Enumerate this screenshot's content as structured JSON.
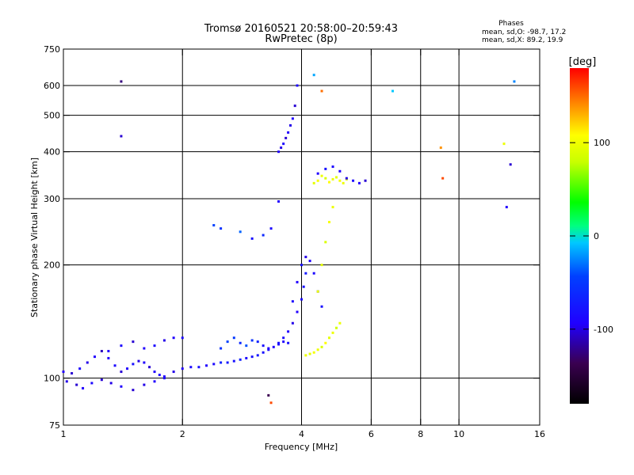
{
  "chart_data": {
    "type": "scatter",
    "title": "Tromsø 20160521 20:58:00–20:59:43",
    "subtitle": "RwPretec (8p)",
    "xlabel": "Frequency [MHz]",
    "ylabel": "Stationary phase Virtual Height [km]",
    "x_scale": "log",
    "y_scale": "log",
    "xlim": [
      1,
      16
    ],
    "ylim": [
      75,
      750
    ],
    "x_ticks": [
      1,
      2,
      4,
      6,
      8,
      10,
      16
    ],
    "y_ticks": [
      75,
      100,
      200,
      300,
      400,
      500,
      600,
      750
    ],
    "x_grid": [
      2,
      4,
      6,
      8,
      10
    ],
    "y_grid": [
      100,
      200,
      300,
      400,
      500,
      600
    ],
    "grid": true,
    "colorbar": {
      "label": "[deg]",
      "range": [
        -180,
        180
      ],
      "ticks": [
        100,
        0,
        -100
      ]
    },
    "stats": {
      "heading": "Phases",
      "line1": "mean, sd,O: -98.7, 17.2",
      "line2": "mean, sd,X:  89.2, 19.9"
    },
    "series": [
      {
        "x": [
          1.0,
          1.05,
          1.1,
          1.15,
          1.2,
          1.25,
          1.3,
          1.35,
          1.4,
          1.45,
          1.5,
          1.55,
          1.6,
          1.65,
          1.7,
          1.75,
          1.8,
          1.9,
          2.0,
          2.1,
          2.2,
          2.3,
          2.4,
          2.5,
          2.6,
          2.7,
          2.8,
          2.9,
          3.0,
          3.1,
          3.2,
          3.3,
          3.4,
          3.5,
          3.6,
          3.7,
          3.8,
          3.9,
          4.0,
          4.05,
          4.1
        ],
        "y": [
          104,
          103,
          106,
          110,
          114,
          118,
          113,
          108,
          104,
          106,
          109,
          111,
          110,
          107,
          104,
          102,
          101,
          104,
          106,
          107,
          107,
          108,
          109,
          110,
          110,
          111,
          112,
          113,
          114,
          115,
          117,
          119,
          121,
          124,
          128,
          133,
          140,
          150,
          162,
          175,
          190
        ],
        "phase": [
          -100,
          -110,
          -95,
          -105,
          -100,
          -115,
          -100,
          -95,
          -110,
          -100,
          -90,
          -105,
          -100,
          -110,
          -100,
          -95,
          -100,
          -105,
          -100,
          -95,
          -90,
          -100,
          -95,
          -80,
          -85,
          -90,
          -80,
          -95,
          -90,
          -85,
          -90,
          -95,
          -100,
          -90,
          -95,
          -100,
          -105,
          -100,
          -95,
          -90,
          -85
        ]
      },
      {
        "x": [
          1.02,
          1.08,
          1.12,
          1.18,
          1.25,
          1.32,
          1.4,
          1.5,
          1.6,
          1.7,
          1.8
        ],
        "y": [
          98,
          96,
          94,
          97,
          99,
          97,
          95,
          93,
          96,
          98,
          100
        ],
        "phase": [
          -105,
          -110,
          -100,
          -95,
          -110,
          -105,
          -100,
          -110,
          -105,
          -100,
          -95
        ]
      },
      {
        "x": [
          1.3,
          1.4,
          1.5,
          1.6,
          1.7,
          1.8,
          1.9,
          2.0
        ],
        "y": [
          118,
          122,
          125,
          120,
          122,
          126,
          128,
          128
        ],
        "phase": [
          -100,
          -95,
          -110,
          -100,
          -95,
          -105,
          -100,
          -95
        ]
      },
      {
        "x": [
          2.5,
          2.6,
          2.7,
          2.8,
          2.9,
          3.0,
          3.1,
          3.2,
          3.3,
          3.5,
          3.6,
          3.7
        ],
        "y": [
          120,
          125,
          128,
          124,
          122,
          126,
          125,
          122,
          120,
          123,
          125,
          124
        ],
        "phase": [
          -70,
          -60,
          -65,
          -75,
          -55,
          -70,
          -80,
          -90,
          -100,
          -95,
          -100,
          -90
        ]
      },
      {
        "x": [
          3.5,
          3.55,
          3.6,
          3.65,
          3.7,
          3.75,
          3.8,
          3.85,
          3.9
        ],
        "y": [
          400,
          410,
          420,
          435,
          450,
          470,
          490,
          530,
          600
        ],
        "phase": [
          -100,
          -105,
          -95,
          -110,
          -100,
          -105,
          -100,
          -110,
          -95
        ]
      },
      {
        "x": [
          4.3,
          4.4,
          4.5,
          4.6,
          4.7,
          4.8,
          4.9,
          5.0,
          5.1,
          5.2
        ],
        "y": [
          330,
          335,
          345,
          340,
          332,
          338,
          342,
          335,
          330,
          338
        ],
        "phase": [
          95,
          105,
          100,
          90,
          110,
          100,
          95,
          105,
          100,
          92
        ]
      },
      {
        "x": [
          4.4,
          4.6,
          4.8,
          5.0,
          5.2,
          5.4,
          5.6,
          5.8
        ],
        "y": [
          350,
          360,
          365,
          355,
          340,
          335,
          330,
          335
        ],
        "phase": [
          -100,
          -90,
          -95,
          -100,
          -105,
          -95,
          -100,
          -110
        ]
      },
      {
        "x": [
          4.1,
          4.2,
          4.3,
          4.4,
          4.5,
          4.6,
          4.7,
          4.8,
          4.9,
          5.0
        ],
        "y": [
          115,
          116,
          117,
          119,
          121,
          124,
          128,
          132,
          136,
          140
        ],
        "phase": [
          100,
          95,
          105,
          100,
          90,
          110,
          95,
          100,
          85,
          100
        ]
      },
      {
        "x": [
          3.8,
          3.9,
          4.0,
          4.1,
          4.2,
          4.3,
          4.4,
          4.5
        ],
        "y": [
          160,
          180,
          200,
          210,
          205,
          190,
          170,
          155
        ],
        "phase": [
          -95,
          -100,
          -90,
          -105,
          -100,
          -95,
          -85,
          -90
        ]
      },
      {
        "x": [
          4.4,
          4.5,
          4.6,
          4.7,
          4.8
        ],
        "y": [
          170,
          200,
          230,
          260,
          285
        ],
        "phase": [
          100,
          95,
          90,
          105,
          100
        ]
      },
      {
        "x": [
          2.4,
          2.5,
          2.8,
          3.0,
          3.2,
          3.35,
          3.5
        ],
        "y": [
          255,
          250,
          245,
          235,
          240,
          250,
          295
        ],
        "phase": [
          -60,
          -70,
          -50,
          -90,
          -75,
          -95,
          -100
        ]
      },
      {
        "x": [
          1.4,
          1.4,
          3.3,
          3.35,
          4.3,
          4.5,
          6.8,
          9.0,
          9.1,
          13.0,
          13.5,
          13.2,
          13.8
        ],
        "y": [
          615,
          440,
          90,
          86,
          640,
          580,
          580,
          410,
          340,
          420,
          370,
          285,
          615
        ],
        "phase": [
          -130,
          -110,
          -140,
          160,
          -30,
          150,
          -20,
          140,
          160,
          100,
          -110,
          -100,
          -40
        ]
      }
    ]
  }
}
